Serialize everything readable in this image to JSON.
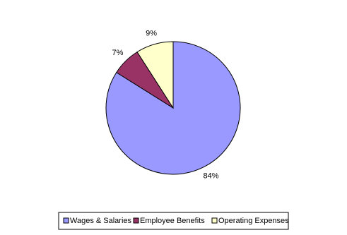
{
  "chart_data": {
    "type": "pie",
    "categories": [
      "Wages & Salaries",
      "Employee Benefits",
      "Operating Expenses"
    ],
    "values": [
      84,
      7,
      9
    ],
    "value_labels": [
      "84%",
      "7%",
      "9%"
    ],
    "colors": [
      "#9999ff",
      "#993366",
      "#ffffcc"
    ]
  }
}
